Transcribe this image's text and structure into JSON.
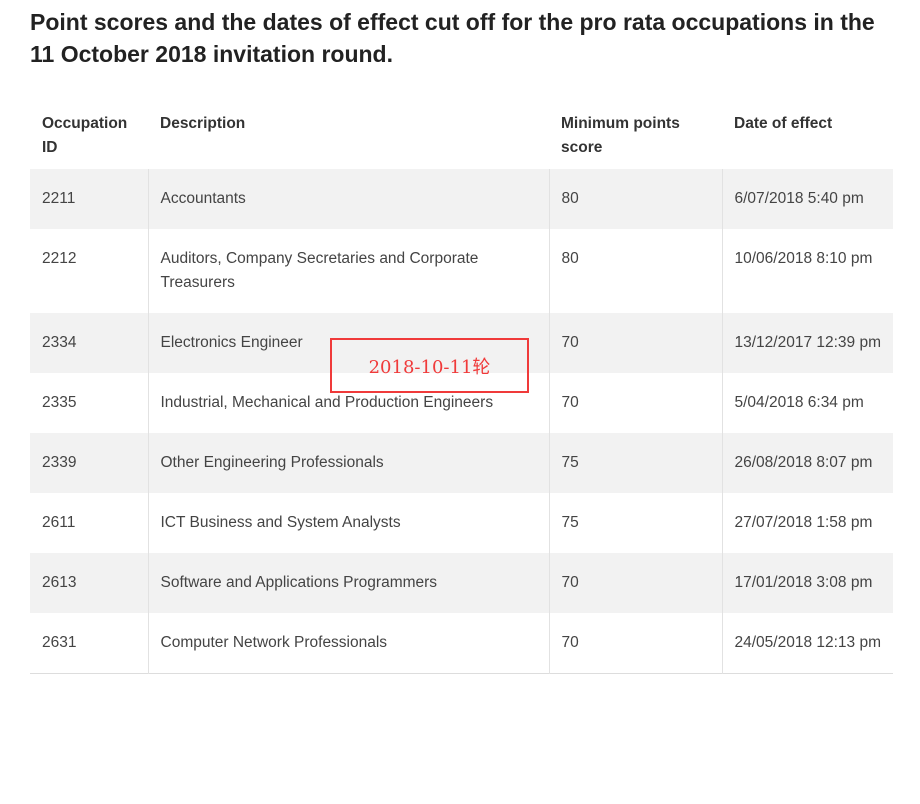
{
  "title": "Point scores and the dates of effect cut off for the pro rata occupations in the 11 October 2018 invitation round.",
  "headers": [
    "Occupation ID",
    "Description",
    "Minimum points score",
    "Date of effect"
  ],
  "rows": [
    [
      "2211",
      "Accountants",
      "80",
      "6/07/2018 5:40 pm"
    ],
    [
      "2212",
      "Auditors, Company Secretaries and Corporate Treasurers",
      "80",
      "10/06/2018 8:10 pm"
    ],
    [
      "2334",
      "Electronics Engineer",
      "70",
      "13/12/2017 12:39 pm"
    ],
    [
      "2335",
      "Industrial, Mechanical and Production Engineers",
      "70",
      "5/04/2018 6:34 pm"
    ],
    [
      "2339",
      "Other Engineering Professionals",
      "75",
      "26/08/2018 8:07 pm"
    ],
    [
      "2611",
      "ICT Business and System Analysts",
      "75",
      "27/07/2018 1:58 pm"
    ],
    [
      "2613",
      "Software and Applications Programmers",
      "70",
      "17/01/2018 3:08 pm"
    ],
    [
      "2631",
      "Computer Network Professionals",
      "70",
      "24/05/2018 12:13 pm"
    ]
  ],
  "annotation": "2018-10-11轮",
  "colors": {
    "annotation": "#f03a3a",
    "row_alt": "#f2f2f2"
  }
}
